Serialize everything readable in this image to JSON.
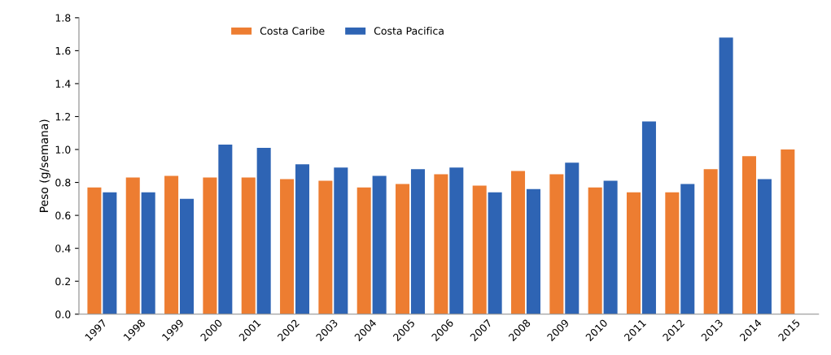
{
  "chart_data": {
    "type": "bar",
    "ylabel": "Peso (g/semana)",
    "categories": [
      "1997",
      "1998",
      "1999",
      "2000",
      "2001",
      "2002",
      "2003",
      "2004",
      "2005",
      "2006",
      "2007",
      "2008",
      "2009",
      "2010",
      "2011",
      "2012",
      "2013",
      "2014",
      "2015"
    ],
    "series": [
      {
        "name": "Costa Caribe",
        "color": "#ed7d31",
        "values": [
          0.77,
          0.83,
          0.84,
          0.83,
          0.83,
          0.82,
          0.81,
          0.77,
          0.79,
          0.85,
          0.78,
          0.87,
          0.85,
          0.77,
          0.74,
          0.74,
          0.88,
          0.96,
          1.0
        ]
      },
      {
        "name": "Costa Pacifica",
        "color": "#2e64b4",
        "values": [
          0.74,
          0.74,
          0.7,
          1.03,
          1.01,
          0.91,
          0.89,
          0.84,
          0.88,
          0.89,
          0.74,
          0.76,
          0.92,
          0.81,
          1.17,
          0.79,
          1.68,
          0.82,
          null
        ]
      }
    ],
    "ylim": [
      0,
      1.8
    ],
    "yticks": [
      {
        "value": 0,
        "label": "0.0"
      },
      {
        "value": 0.2,
        "label": "0.2"
      },
      {
        "value": 0.4,
        "label": "0.4"
      },
      {
        "value": 0.6,
        "label": "0.6"
      },
      {
        "value": 0.8,
        "label": "0.8"
      },
      {
        "value": 1.0,
        "label": "1.0"
      },
      {
        "value": 1.2,
        "label": "1.2"
      },
      {
        "value": 1.4,
        "label": "1.4"
      },
      {
        "value": 1.6,
        "label": "1.6"
      },
      {
        "value": 1.8,
        "label": "1.8"
      }
    ],
    "grid": false,
    "legend": "top"
  }
}
